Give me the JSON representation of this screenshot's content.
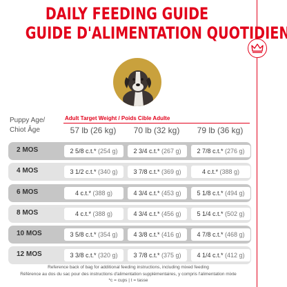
{
  "titles": {
    "en": "DAILY FEEDING GUIDE",
    "fr": "GUIDE D'ALIMENTATION QUOTIDIEN"
  },
  "logo": {
    "icon": "crown-icon",
    "color": "#e2001a"
  },
  "table": {
    "age_header": {
      "en": "Puppy Age/",
      "fr": "Chiot Âge"
    },
    "weight_header": "Adult Target Weight / Poids Cible Adulte",
    "columns": [
      "57 lb (26 kg)",
      "70 lb (32 kg)",
      "79 lb (36 kg)"
    ],
    "rows": [
      {
        "age": "2 MOS",
        "cells": [
          {
            "amount": "2 5/8 c.t.*",
            "grams": "(254 g)"
          },
          {
            "amount": "2 3/4 c.t.*",
            "grams": "(267 g)"
          },
          {
            "amount": "2 7/8 c.t.*",
            "grams": "(276 g)"
          }
        ]
      },
      {
        "age": "4 MOS",
        "cells": [
          {
            "amount": "3 1/2 c.t.*",
            "grams": "(340 g)"
          },
          {
            "amount": "3 7/8 c.t.*",
            "grams": "(369 g)"
          },
          {
            "amount": "4 c.t.*",
            "grams": "(388 g)"
          }
        ]
      },
      {
        "age": "6 MOS",
        "cells": [
          {
            "amount": "4 c.t.*",
            "grams": "(388 g)"
          },
          {
            "amount": "4 3/4 c.t.*",
            "grams": "(453 g)"
          },
          {
            "amount": "5 1/8 c.t.*",
            "grams": "(494 g)"
          }
        ]
      },
      {
        "age": "8 MOS",
        "cells": [
          {
            "amount": "4 c.t.*",
            "grams": "(388 g)"
          },
          {
            "amount": "4 3/4 c.t.*",
            "grams": "(456 g)"
          },
          {
            "amount": "5 1/4 c.t.*",
            "grams": "(502 g)"
          }
        ]
      },
      {
        "age": "10 MOS",
        "cells": [
          {
            "amount": "3 5/8 c.t.*",
            "grams": "(354 g)"
          },
          {
            "amount": "4 3/8 c.t.*",
            "grams": "(416 g)"
          },
          {
            "amount": "4 7/8 c.t.*",
            "grams": "(468 g)"
          }
        ]
      },
      {
        "age": "12 MOS",
        "cells": [
          {
            "amount": "3 3/8 c.t.*",
            "grams": "(320 g)"
          },
          {
            "amount": "3 7/8 c.t.*",
            "grams": "(375 g)"
          },
          {
            "amount": "4 1/4 c.t.*",
            "grams": "(412 g)"
          }
        ]
      }
    ]
  },
  "footnotes": [
    "Reference back of bag for additional feeding instructions, including mixed feeding",
    "Référence au dos du sac pour des instructions d'alimentation supplémentaires, y compris l'alimentation mixte",
    "*c = cups | t = tasse"
  ],
  "colors": {
    "accent": "#e2001a",
    "row_dark": "#c6c6c6",
    "row_light": "#e3e3e3",
    "puppy_circle": "#c9a13d"
  }
}
